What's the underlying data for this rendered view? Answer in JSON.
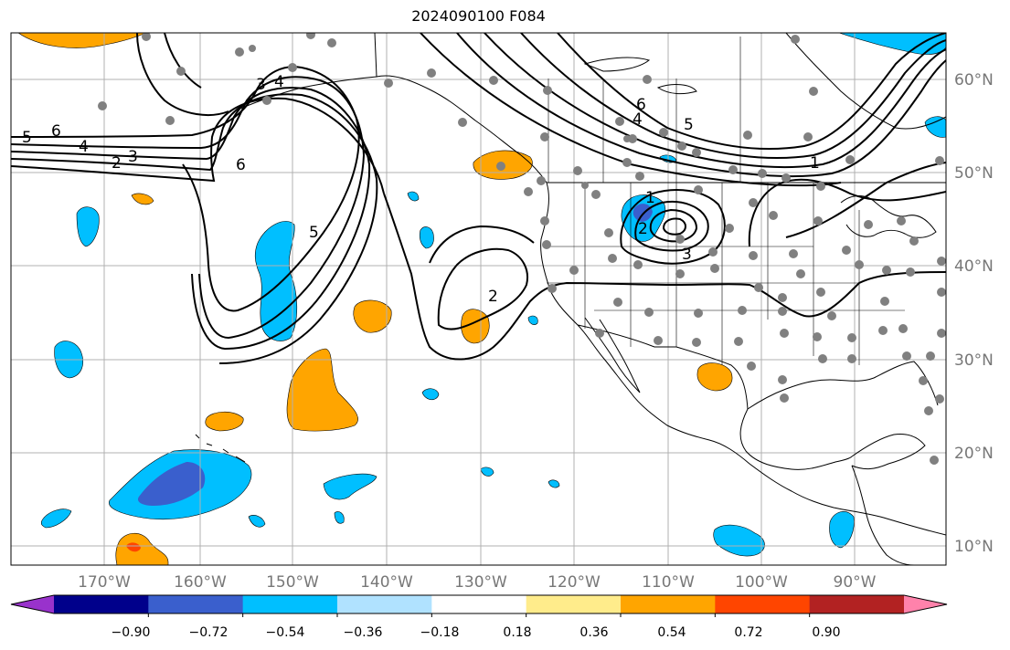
{
  "title": "2024090100 F084",
  "lon_ticks": [
    "170°W",
    "160°W",
    "150°W",
    "140°W",
    "130°W",
    "120°W",
    "110°W",
    "100°W",
    "90°W"
  ],
  "lat_ticks": [
    "60°N",
    "50°N",
    "40°N",
    "30°N",
    "20°N",
    "10°N"
  ],
  "contour_labels": [
    "6",
    "5",
    "4",
    "3",
    "2",
    "6",
    "5",
    "4",
    "3",
    "2",
    "1",
    "2",
    "3",
    "6",
    "4",
    "5",
    "1"
  ],
  "colorbar": {
    "ticks": [
      "−0.90",
      "−0.72",
      "−0.54",
      "−0.36",
      "−0.18",
      "0.18",
      "0.36",
      "0.54",
      "0.72",
      "0.90"
    ],
    "colors": [
      "#9932cc",
      "#00008b",
      "#3a5fcd",
      "#00bfff",
      "#b0e2ff",
      "#ffffff",
      "#ffec8b",
      "#ffa500",
      "#ff4500",
      "#b22222",
      "#ff82ab"
    ]
  },
  "colors": {
    "negative_fill": "#00bfff",
    "negative_strong": "#3a5fcd",
    "positive_fill": "#ffa500",
    "positive_strong": "#ff4500",
    "station_dots": "#808080",
    "grid": "#b0b0b0"
  }
}
